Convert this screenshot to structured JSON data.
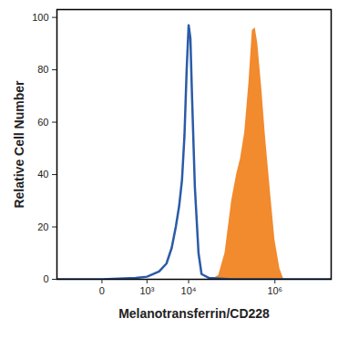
{
  "chart_data": {
    "type": "line",
    "x_label": "Melanotransferrin/CD228",
    "y_label": "Relative Cell Number",
    "log": "x",
    "xlim": [
      -1000,
      20000000
    ],
    "xticks": [
      {
        "value": 0,
        "label": "0"
      },
      {
        "value": 1000,
        "label": "10³"
      },
      {
        "value": 10000,
        "label": "10⁴"
      },
      {
        "value": 1000000,
        "label": "10⁶"
      }
    ],
    "ylim": [
      0,
      103
    ],
    "yticks": [
      0,
      20,
      40,
      60,
      80,
      100
    ],
    "series": [
      {
        "type": "area",
        "color": "#f28a2e",
        "x": [
          30000,
          40000,
          50000,
          70000,
          100000,
          130000,
          160000,
          200000,
          250000,
          300000,
          350000,
          400000,
          500000,
          600000,
          800000,
          1000000,
          1300000,
          1600000
        ],
        "values": [
          0,
          0.5,
          1.5,
          10,
          30,
          40,
          46,
          56,
          75,
          95,
          96,
          90,
          72,
          55,
          32,
          15,
          4,
          0
        ]
      },
      {
        "type": "line",
        "color": "#2b5ba8",
        "x": [
          -1000,
          0,
          500,
          1000,
          2000,
          3000,
          4000,
          5000,
          6000,
          7000,
          8000,
          9000,
          10000,
          11000,
          12000,
          14000,
          17000,
          20000,
          30000,
          100000,
          1000000,
          20000000
        ],
        "values": [
          0,
          0,
          0.5,
          1,
          3,
          6,
          12,
          20,
          28,
          38,
          55,
          80,
          97,
          92,
          70,
          35,
          10,
          2,
          0.5,
          0,
          0,
          0
        ]
      }
    ]
  }
}
